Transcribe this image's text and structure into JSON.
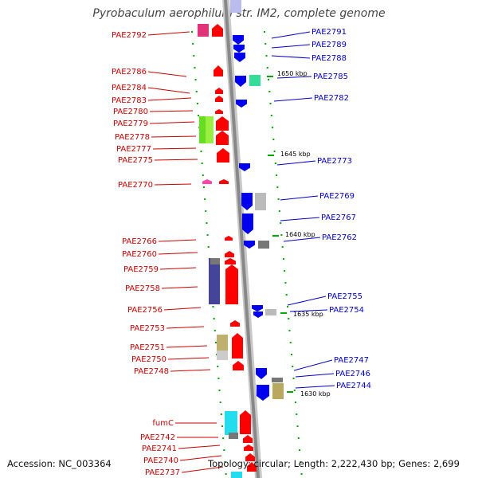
{
  "title": "Pyrobaculum aerophilum str. IM2, complete genome",
  "footer": {
    "accession": "Accession: NC_003364",
    "topology": "Topology: circular; Length: 2,222,430 bp; Genes: 2,699"
  },
  "scale_labels": [
    "1650 kbp",
    "1645 kbp",
    "1640 kbp",
    "1635 kbp",
    "1630 kbp"
  ],
  "left_genes": [
    "PAE2792",
    "PAE2786",
    "PAE2784",
    "PAE2783",
    "PAE2780",
    "PAE2779",
    "PAE2778",
    "PAE2777",
    "PAE2775",
    "PAE2770",
    "PAE2766",
    "PAE2760",
    "PAE2759",
    "PAE2758",
    "PAE2756",
    "PAE2753",
    "PAE2751",
    "PAE2750",
    "PAE2748",
    "fumC",
    "PAE2742",
    "PAE2741",
    "PAE2740",
    "PAE2737"
  ],
  "right_genes": [
    "PAE2791",
    "PAE2789",
    "PAE2788",
    "PAE2785",
    "PAE2782",
    "PAE2773",
    "PAE2769",
    "PAE2767",
    "PAE2762",
    "PAE2755",
    "PAE2754",
    "PAE2747",
    "PAE2746",
    "PAE2744"
  ],
  "colors": {
    "forward_strand": "#ff0000",
    "reverse_strand": "#0000ee",
    "label_forward": "#cc0000",
    "label_reverse": "#0000cc",
    "backbone": "#888888",
    "tick": "#00aa00"
  }
}
